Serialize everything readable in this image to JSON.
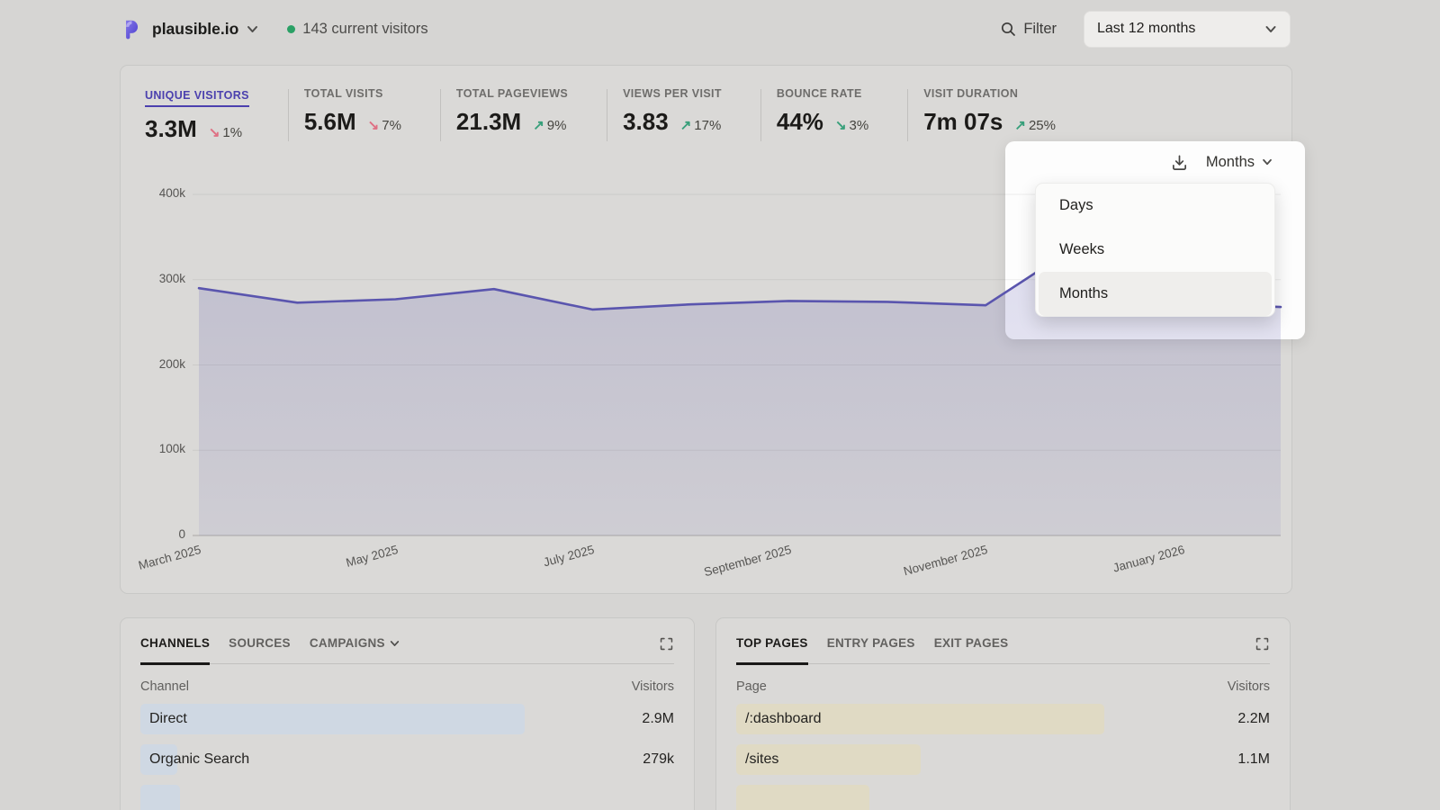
{
  "header": {
    "site_name": "plausible.io",
    "current_visitors": "143 current visitors",
    "filter_label": "Filter",
    "date_range": "Last 12 months"
  },
  "stats": [
    {
      "label": "UNIQUE VISITORS",
      "value": "3.3M",
      "change": "1%",
      "arrow": "down",
      "sentiment": "bad",
      "active": true
    },
    {
      "label": "TOTAL VISITS",
      "value": "5.6M",
      "change": "7%",
      "arrow": "down",
      "sentiment": "bad",
      "active": false
    },
    {
      "label": "TOTAL PAGEVIEWS",
      "value": "21.3M",
      "change": "9%",
      "arrow": "up",
      "sentiment": "good",
      "active": false
    },
    {
      "label": "VIEWS PER VISIT",
      "value": "3.83",
      "change": "17%",
      "arrow": "up",
      "sentiment": "good",
      "active": false
    },
    {
      "label": "BOUNCE RATE",
      "value": "44%",
      "change": "3%",
      "arrow": "down",
      "sentiment": "good",
      "active": false
    },
    {
      "label": "VISIT DURATION",
      "value": "7m 07s",
      "change": "25%",
      "arrow": "up",
      "sentiment": "good",
      "active": false
    }
  ],
  "interval_dropdown": {
    "selected": "Months",
    "options": [
      "Days",
      "Weeks",
      "Months"
    ]
  },
  "chart_data": {
    "type": "area",
    "title": "Unique visitors, last 12 months",
    "x": [
      "March 2025",
      "April 2025",
      "May 2025",
      "June 2025",
      "July 2025",
      "August 2025",
      "September 2025",
      "October 2025",
      "November 2025",
      "December 2025",
      "January 2026",
      "February 2026"
    ],
    "values": [
      290000,
      273000,
      277000,
      289000,
      265000,
      271000,
      275000,
      274000,
      270000,
      345000,
      272000,
      268000
    ],
    "x_tick_labels": [
      "March 2025",
      "May 2025",
      "July 2025",
      "September 2025",
      "November 2025",
      "January 2026"
    ],
    "y_ticks": [
      {
        "label": "400k",
        "value": 400000
      },
      {
        "label": "300k",
        "value": 300000
      },
      {
        "label": "200k",
        "value": 200000
      },
      {
        "label": "100k",
        "value": 100000
      },
      {
        "label": "0",
        "value": 0
      }
    ],
    "ylim": [
      0,
      400000
    ],
    "grid": true,
    "legend": "none"
  },
  "left_panel": {
    "tabs": [
      {
        "label": "CHANNELS",
        "active": true,
        "has_dropdown": false
      },
      {
        "label": "SOURCES",
        "active": false,
        "has_dropdown": false
      },
      {
        "label": "CAMPAIGNS",
        "active": false,
        "has_dropdown": true
      }
    ],
    "columns": {
      "name": "Channel",
      "value": "Visitors"
    },
    "rows": [
      {
        "label": "Direct",
        "value": "2.9M",
        "bar_pct": 72
      },
      {
        "label": "Organic Search",
        "value": "279k",
        "bar_pct": 6.9
      },
      {
        "label": "",
        "value": "",
        "bar_pct": 7.5
      }
    ]
  },
  "right_panel": {
    "tabs": [
      {
        "label": "TOP PAGES",
        "active": true,
        "has_dropdown": false
      },
      {
        "label": "ENTRY PAGES",
        "active": false,
        "has_dropdown": false
      },
      {
        "label": "EXIT PAGES",
        "active": false,
        "has_dropdown": false
      }
    ],
    "columns": {
      "name": "Page",
      "value": "Visitors"
    },
    "rows": [
      {
        "label": "/:dashboard",
        "value": "2.2M",
        "bar_pct": 69
      },
      {
        "label": "/sites",
        "value": "1.1M",
        "bar_pct": 34.5
      },
      {
        "label": "",
        "value": "",
        "bar_pct": 25
      }
    ]
  },
  "colors": {
    "accent": "#4b40ae",
    "chart_line": "#5a55ae",
    "positive": "#379f7a",
    "negative": "#df6f83",
    "left_bar": "#cfd8e3",
    "right_bar": "#e0dac4",
    "live_dot": "#2aa065"
  }
}
